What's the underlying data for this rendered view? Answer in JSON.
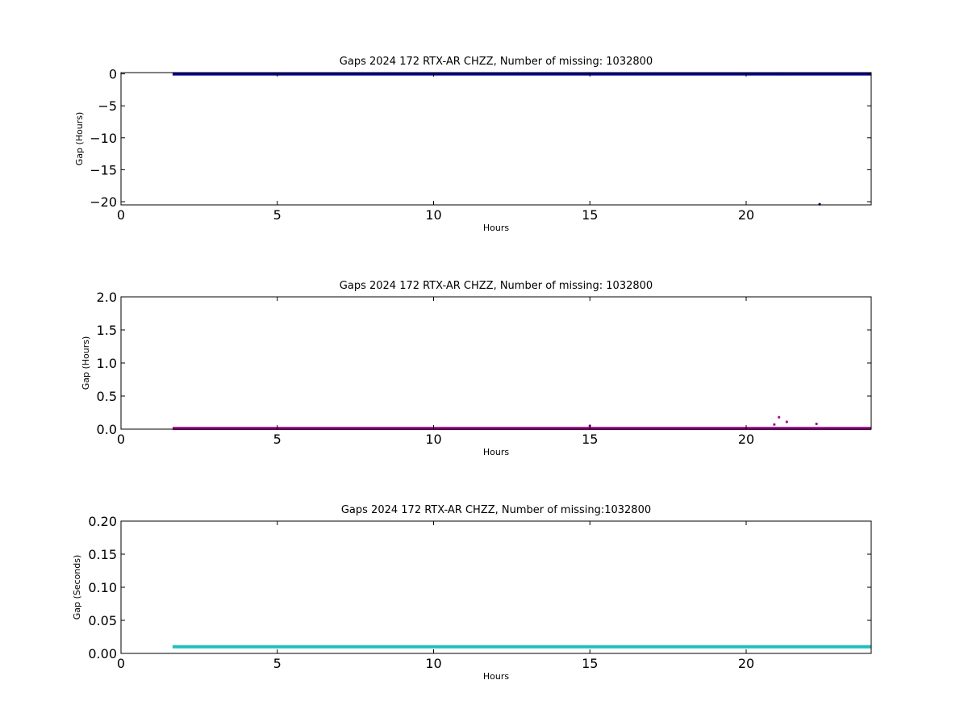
{
  "chart_data": [
    {
      "type": "scatter",
      "title": "Gaps 2024 172 RTX-AR  CHZZ, Number of missing: 1032800",
      "xlabel": "Hours",
      "ylabel": "Gap (Hours)",
      "xlim": [
        0,
        24
      ],
      "ylim": [
        -20.5,
        0.2
      ],
      "xticks": [
        0,
        5,
        10,
        15,
        20
      ],
      "xtick_labels": [
        "0",
        "5",
        "10",
        "15",
        "20"
      ],
      "yticks": [
        0,
        -5,
        -10,
        -15,
        -20
      ],
      "ytick_labels": [
        "0",
        "−5",
        "−10",
        "−15",
        "−20"
      ],
      "color": "#00008b",
      "series": [
        {
          "band": {
            "x_start": 1.65,
            "x_end": 24.0,
            "y": 0.0
          },
          "points": [
            [
              21.0,
              -0.05
            ],
            [
              21.2,
              0.02
            ],
            [
              22.35,
              -20.4
            ]
          ]
        }
      ]
    },
    {
      "type": "scatter",
      "title": "Gaps 2024 172 RTX-AR  CHZZ, Number of missing: 1032800",
      "xlabel": "Hours",
      "ylabel": "Gap (Hours)",
      "xlim": [
        0,
        24
      ],
      "ylim": [
        0,
        2
      ],
      "xticks": [
        0,
        5,
        10,
        15,
        20
      ],
      "xtick_labels": [
        "0",
        "5",
        "10",
        "15",
        "20"
      ],
      "yticks": [
        0.0,
        0.5,
        1.0,
        1.5,
        2.0
      ],
      "ytick_labels": [
        "0.0",
        "0.5",
        "1.0",
        "1.5",
        "2.0"
      ],
      "color": "#a0138f",
      "series": [
        {
          "band": {
            "x_start": 1.65,
            "x_end": 24.0,
            "y": 0.01
          },
          "points": [
            [
              15.0,
              0.05
            ],
            [
              20.9,
              0.07
            ],
            [
              21.05,
              0.18
            ],
            [
              21.3,
              0.11
            ],
            [
              22.25,
              0.08
            ]
          ]
        }
      ]
    },
    {
      "type": "scatter",
      "title": "Gaps 2024 172 RTX-AR  CHZZ, Number of missing:1032800",
      "xlabel": "Hours",
      "ylabel": "Gap (Seconds)",
      "xlim": [
        0,
        24
      ],
      "ylim": [
        0,
        0.2
      ],
      "xticks": [
        0,
        5,
        10,
        15,
        20
      ],
      "xtick_labels": [
        "0",
        "5",
        "10",
        "15",
        "20"
      ],
      "yticks": [
        0.0,
        0.05,
        0.1,
        0.15,
        0.2
      ],
      "ytick_labels": [
        "0.00",
        "0.05",
        "0.10",
        "0.15",
        "0.20"
      ],
      "color": "#1fbfbf",
      "series": [
        {
          "band": {
            "x_start": 1.65,
            "x_end": 24.0,
            "y": 0.01
          },
          "points": []
        }
      ]
    }
  ]
}
